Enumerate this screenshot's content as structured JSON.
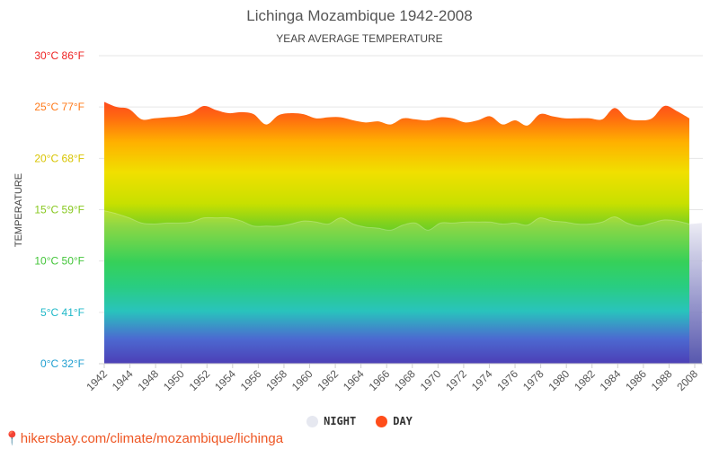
{
  "chart_data": {
    "type": "area",
    "title": "Lichinga Mozambique 1942-2008",
    "subtitle": "YEAR AVERAGE TEMPERATURE",
    "ylabel": "TEMPERATURE",
    "ylim": [
      0,
      30
    ],
    "y_ticks": [
      {
        "value": 0,
        "label": "0°C 32°F",
        "color": "#1f9fd0"
      },
      {
        "value": 5,
        "label": "5°C 41°F",
        "color": "#1fb8c8"
      },
      {
        "value": 10,
        "label": "10°C 50°F",
        "color": "#44c53a"
      },
      {
        "value": 15,
        "label": "15°C 59°F",
        "color": "#88c820"
      },
      {
        "value": 20,
        "label": "20°C 68°F",
        "color": "#d8c400"
      },
      {
        "value": 25,
        "label": "25°C 77°F",
        "color": "#ff7a1a"
      },
      {
        "value": 30,
        "label": "30°C 86°F",
        "color": "#ee2222"
      }
    ],
    "x_tick_labels": [
      "1942",
      "1944",
      "1948",
      "1950",
      "1952",
      "1954",
      "1956",
      "1958",
      "1960",
      "1962",
      "1964",
      "1966",
      "1968",
      "1970",
      "1972",
      "1974",
      "1976",
      "1978",
      "1980",
      "1982",
      "1984",
      "1986",
      "1988",
      "2008"
    ],
    "grid": true,
    "legend_position": "bottom",
    "series": [
      {
        "name": "NIGHT",
        "color": "#dde0ee",
        "x": [
          1942,
          1943,
          1944,
          1945,
          1946,
          1947,
          1948,
          1949,
          1950,
          1951,
          1952,
          1953,
          1954,
          1955,
          1956,
          1957,
          1958,
          1959,
          1960,
          1961,
          1962,
          1963,
          1964,
          1965,
          1966,
          1967,
          1968,
          1969,
          1970,
          1971,
          1972,
          1973,
          1974,
          1975,
          1976,
          1977,
          1978,
          1979,
          1980,
          1981,
          1982,
          1983,
          1984,
          1985,
          1986,
          1987,
          1988,
          1989,
          1990
        ],
        "values": [
          14.9,
          14.6,
          14.2,
          13.7,
          13.6,
          13.7,
          13.7,
          13.8,
          14.2,
          14.2,
          14.2,
          13.9,
          13.4,
          13.4,
          13.4,
          13.6,
          13.9,
          13.8,
          13.6,
          14.2,
          13.6,
          13.3,
          13.2,
          13.0,
          13.5,
          13.7,
          13.0,
          13.7,
          13.7,
          13.8,
          13.8,
          13.8,
          13.6,
          13.7,
          13.5,
          14.2,
          13.9,
          13.8,
          13.6,
          13.6,
          13.8,
          14.3,
          13.7,
          13.4,
          13.7,
          14.0,
          13.9,
          13.6,
          13.7
        ]
      },
      {
        "name": "DAY",
        "color": "#ff4d1a",
        "x": [
          1942,
          1943,
          1944,
          1945,
          1946,
          1947,
          1948,
          1949,
          1950,
          1951,
          1952,
          1953,
          1954,
          1955,
          1956,
          1957,
          1958,
          1959,
          1960,
          1961,
          1962,
          1963,
          1964,
          1965,
          1966,
          1967,
          1968,
          1969,
          1970,
          1971,
          1972,
          1973,
          1974,
          1975,
          1976,
          1977,
          1978,
          1979,
          1980,
          1981,
          1982,
          1983,
          1984,
          1985,
          1986,
          1987,
          1988,
          1989
        ],
        "values": [
          25.5,
          25.0,
          24.8,
          23.8,
          23.9,
          24.0,
          24.1,
          24.4,
          25.1,
          24.7,
          24.4,
          24.5,
          24.3,
          23.3,
          24.2,
          24.4,
          24.3,
          23.9,
          24.0,
          24.0,
          23.7,
          23.5,
          23.6,
          23.3,
          23.9,
          23.8,
          23.7,
          24.0,
          23.9,
          23.5,
          23.7,
          24.1,
          23.3,
          23.7,
          23.2,
          24.3,
          24.1,
          23.9,
          23.9,
          23.9,
          23.8,
          24.9,
          23.9,
          23.7,
          23.9,
          25.1,
          24.6,
          23.9
        ]
      }
    ]
  },
  "source_text": "hikersbay.com/climate/mozambique/lichinga"
}
